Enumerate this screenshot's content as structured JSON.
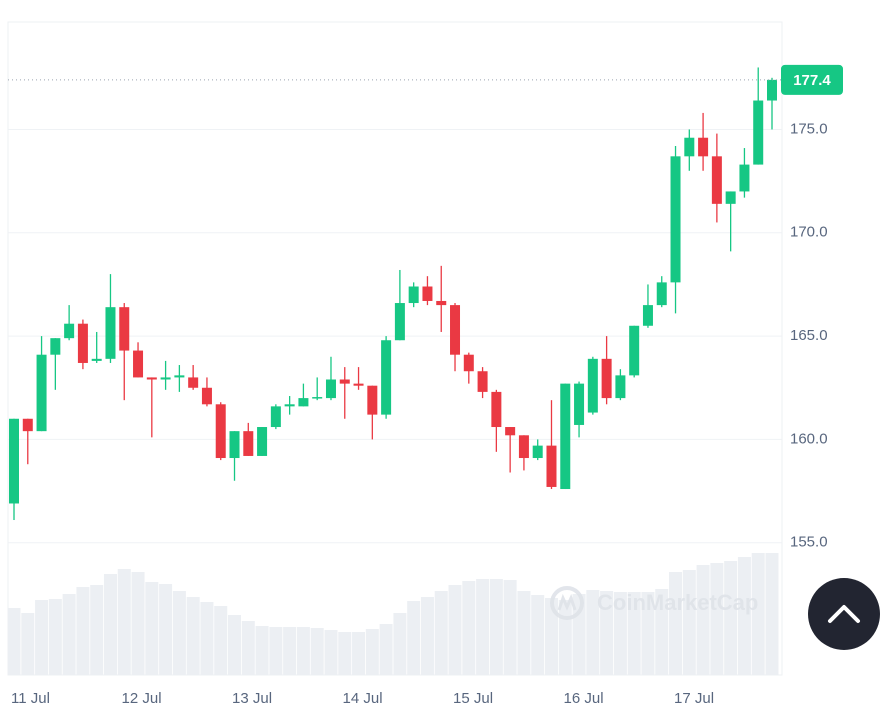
{
  "chart_data": {
    "type": "candlestick",
    "x_labels": [
      "11 Jul",
      "12 Jul",
      "13 Jul",
      "14 Jul",
      "15 Jul",
      "16 Jul",
      "17 Jul"
    ],
    "open": [
      156.9,
      161.0,
      160.4,
      164.1,
      164.9,
      165.6,
      163.8,
      163.9,
      166.4,
      164.3,
      163.0,
      162.9,
      163.0,
      163.0,
      162.5,
      161.7,
      159.1,
      160.4,
      159.2,
      160.6,
      161.6,
      161.6,
      162.0,
      162.0,
      162.9,
      162.7,
      162.6,
      161.2,
      164.8,
      166.6,
      167.4,
      166.7,
      166.5,
      164.1,
      163.3,
      162.3,
      160.6,
      160.2,
      159.1,
      159.7,
      157.6,
      160.7,
      161.3,
      163.9,
      162.0,
      163.1,
      165.5,
      166.5,
      167.6,
      173.7,
      174.6,
      173.7,
      171.4,
      172.0,
      173.3,
      176.4
    ],
    "high": [
      161.0,
      161.0,
      165.0,
      164.9,
      166.5,
      165.8,
      165.2,
      168.0,
      166.6,
      164.7,
      163.0,
      163.8,
      163.6,
      163.6,
      163.0,
      161.8,
      160.4,
      160.8,
      160.6,
      161.7,
      162.1,
      162.7,
      163.0,
      164.0,
      163.5,
      163.5,
      162.6,
      165.0,
      168.2,
      167.6,
      167.9,
      168.4,
      166.6,
      164.2,
      163.5,
      162.4,
      160.6,
      160.2,
      160.0,
      161.9,
      162.7,
      162.8,
      164.0,
      165.0,
      163.4,
      165.5,
      167.5,
      167.9,
      174.2,
      175.0,
      175.8,
      174.8,
      172.0,
      174.1,
      178.0,
      177.5
    ],
    "low": [
      156.1,
      158.8,
      160.4,
      162.4,
      164.8,
      163.4,
      163.7,
      163.7,
      161.9,
      163.0,
      160.1,
      162.4,
      162.3,
      162.4,
      161.6,
      159.0,
      158.0,
      159.2,
      159.2,
      160.5,
      161.2,
      161.6,
      161.9,
      161.9,
      161.0,
      162.4,
      160.0,
      161.0,
      164.8,
      166.4,
      166.5,
      165.2,
      163.3,
      162.7,
      162.0,
      159.4,
      158.4,
      158.5,
      159.0,
      157.6,
      157.6,
      160.1,
      161.2,
      161.7,
      161.9,
      163.0,
      165.4,
      166.4,
      166.1,
      173.0,
      173.0,
      170.5,
      169.1,
      171.7,
      173.3,
      175.0
    ],
    "close": [
      161.0,
      160.4,
      164.1,
      164.9,
      165.6,
      163.7,
      163.9,
      166.4,
      164.3,
      163.0,
      162.9,
      163.0,
      163.1,
      162.5,
      161.7,
      159.1,
      160.4,
      159.2,
      160.6,
      161.6,
      161.7,
      162.0,
      162.05,
      162.9,
      162.7,
      162.6,
      161.2,
      164.8,
      166.6,
      167.4,
      166.7,
      166.5,
      164.1,
      163.3,
      162.3,
      160.6,
      160.2,
      159.1,
      159.7,
      157.7,
      162.7,
      162.7,
      163.9,
      162.0,
      163.1,
      165.5,
      166.5,
      167.6,
      173.7,
      174.6,
      173.7,
      171.4,
      172.0,
      173.3,
      176.4,
      177.4
    ],
    "volume": [
      67,
      62,
      75,
      76,
      81,
      88,
      90,
      101,
      106,
      103,
      93,
      91,
      84,
      78,
      73,
      69,
      60,
      54,
      49,
      48,
      48,
      48,
      47,
      45,
      43,
      43,
      46,
      51,
      62,
      74,
      78,
      84,
      90,
      94,
      96,
      96,
      95,
      84,
      80,
      77,
      75,
      81,
      85,
      84,
      83,
      83,
      83,
      86,
      103,
      105,
      110,
      112,
      114,
      118,
      122,
      122
    ],
    "up_color": "#16c784",
    "down_color": "#ea3943",
    "volume_color": "#eceff3",
    "last_price": 177.4,
    "ylim": [
      148.6,
      180.2
    ],
    "yticks": [
      {
        "value": 155,
        "label": "155.0"
      },
      {
        "value": 160,
        "label": "160.0"
      },
      {
        "value": 165,
        "label": "165.0"
      },
      {
        "value": 170,
        "label": "170.0"
      },
      {
        "value": 175,
        "label": "175.0"
      }
    ],
    "grid": true,
    "watermark": "CoinMarketCap"
  }
}
